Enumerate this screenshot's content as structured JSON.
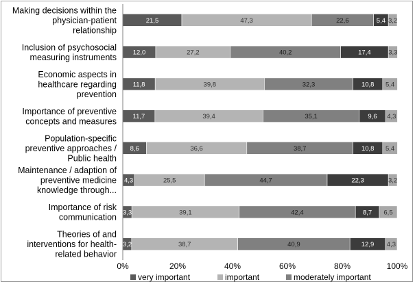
{
  "chart_data": {
    "type": "bar",
    "orientation": "horizontal",
    "stacked": true,
    "categories": [
      [
        "Making decisions within the",
        "physician-patient",
        "relationship"
      ],
      [
        "Inclusion of psychosocial",
        "measuring instruments"
      ],
      [
        "Economic aspects in",
        "healthcare regarding",
        "prevention"
      ],
      [
        "Importance of preventive",
        "concepts and measures"
      ],
      [
        "Population-specific",
        "preventive approaches /",
        "Public health"
      ],
      [
        "Maintenance / adaption of",
        "preventive medicine",
        "knowledge through..."
      ],
      [
        "Importance of risk",
        "communication"
      ],
      [
        "Theories of and",
        "interventions for health-",
        "related behavior"
      ]
    ],
    "series": [
      {
        "name": "very important",
        "color": "#5a5a5a",
        "label_color": "#ffffff",
        "values": [
          21.5,
          12.0,
          11.8,
          11.7,
          8.6,
          4.3,
          3.3,
          3.2
        ],
        "labels": [
          "21,5",
          "12,0",
          "11,8",
          "11,7",
          "8,6",
          "4,3",
          "3,3",
          "3,2"
        ]
      },
      {
        "name": "important",
        "color": "#b4b4b4",
        "label_color": "#333333",
        "values": [
          47.3,
          27.2,
          39.8,
          39.4,
          36.6,
          25.5,
          39.1,
          38.7
        ],
        "labels": [
          "47,3",
          "27,2",
          "39,8",
          "39,4",
          "36,6",
          "25,5",
          "39,1",
          "38,7"
        ]
      },
      {
        "name": "moderately important",
        "color": "#808080",
        "label_color": "#1a1a1a",
        "values": [
          22.6,
          40.2,
          32.3,
          35.1,
          38.7,
          44.7,
          42.4,
          40.9
        ],
        "labels": [
          "22,6",
          "40,2",
          "32,3",
          "35,1",
          "38,7",
          "44,7",
          "42,4",
          "40,9"
        ]
      },
      {
        "name": "",
        "color": "#3c3c3c",
        "label_color": "#ffffff",
        "values": [
          5.4,
          17.4,
          10.8,
          9.6,
          10.8,
          22.3,
          8.7,
          12.9
        ],
        "labels": [
          "5,4",
          "17,4",
          "10,8",
          "9,6",
          "10,8",
          "22,3",
          "8,7",
          "12,9"
        ]
      },
      {
        "name": "",
        "color": "#a8a8a8",
        "label_color": "#333333",
        "values": [
          3.2,
          3.3,
          5.4,
          4.3,
          5.4,
          3.2,
          6.5,
          4.3
        ],
        "labels": [
          "3,2",
          "3,3",
          "5,4",
          "4,3",
          "5,4",
          "3,2",
          "6,5",
          "4,3"
        ]
      }
    ],
    "x_ticks": [
      "0%",
      "20%",
      "40%",
      "60%",
      "80%",
      "100%"
    ],
    "xlim": [
      0,
      100
    ],
    "grid": false,
    "legend_position": "bottom"
  }
}
